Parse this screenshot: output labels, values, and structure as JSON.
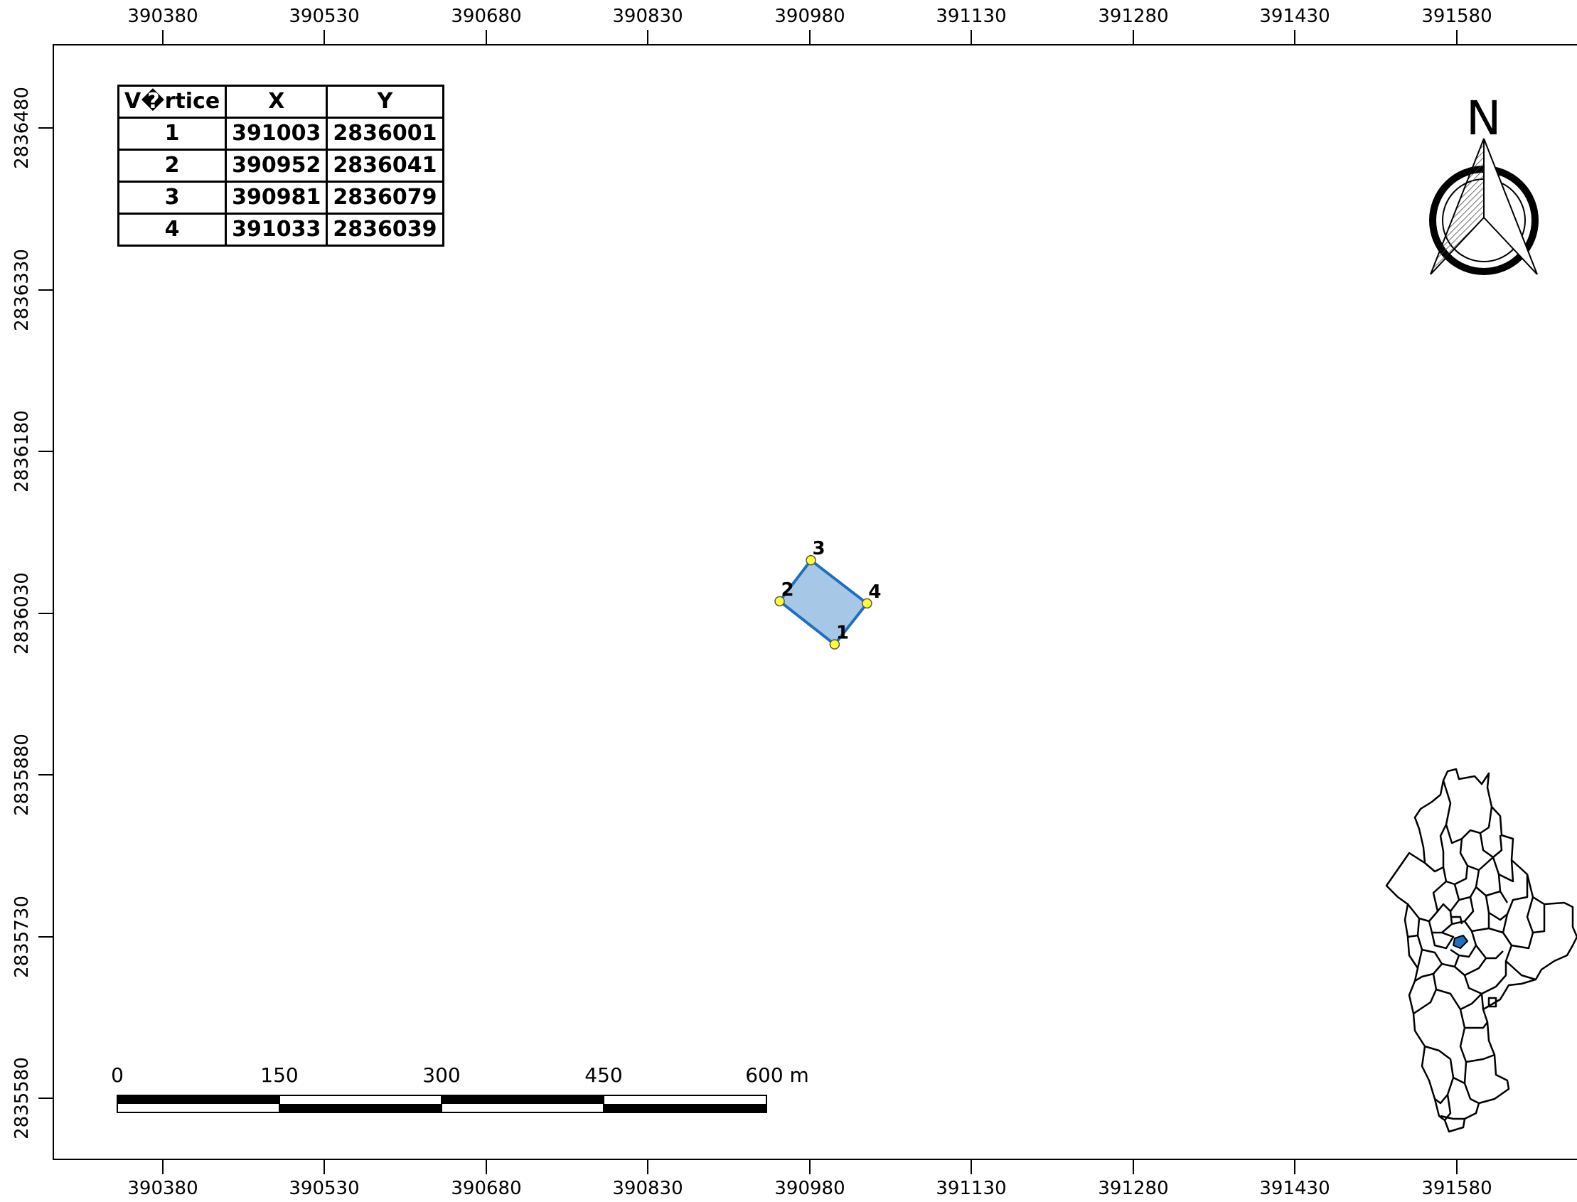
{
  "map": {
    "x_ticks": [
      "390380",
      "390530",
      "390680",
      "390830",
      "390980",
      "391130",
      "391280",
      "391430",
      "391580"
    ],
    "y_ticks": [
      "2836480",
      "2836330",
      "2836180",
      "2836030",
      "2835880",
      "2835730",
      "2835580"
    ]
  },
  "vertex_table": {
    "headers": [
      "V�rtice",
      "X",
      "Y"
    ],
    "rows": [
      [
        "1",
        "391003",
        "2836001"
      ],
      [
        "2",
        "390952",
        "2836041"
      ],
      [
        "3",
        "390981",
        "2836079"
      ],
      [
        "4",
        "391033",
        "2836039"
      ]
    ]
  },
  "polygon": {
    "vertices": [
      {
        "label": "1",
        "x": 391003,
        "y": 2836001
      },
      {
        "label": "2",
        "x": 390952,
        "y": 2836041
      },
      {
        "label": "3",
        "x": 390981,
        "y": 2836079
      },
      {
        "label": "4",
        "x": 391033,
        "y": 2836039
      }
    ],
    "fill_color": "#a6c8e6",
    "stroke_color": "#1f6fbf",
    "vertex_color": "#ffff33"
  },
  "north_arrow": {
    "label": "N"
  },
  "scale_bar": {
    "labels": [
      "0",
      "150",
      "300",
      "450",
      "600 m"
    ]
  },
  "locator_map": {
    "highlight_color": "#1f6fbf"
  }
}
